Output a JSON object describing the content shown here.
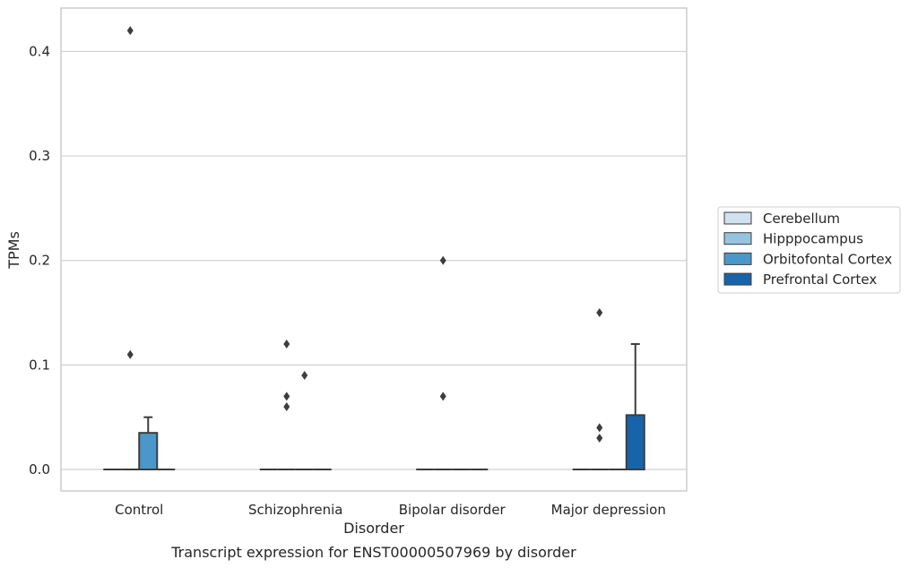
{
  "chart_data": {
    "type": "box",
    "xlabel": "Disorder",
    "ylabel": "TPMs",
    "caption": "Transcript expression for ENST00000507969 by disorder",
    "categories": [
      "Control",
      "Schizophrenia",
      "Bipolar disorder",
      "Major depression"
    ],
    "ylim": [
      -0.02,
      0.44
    ],
    "yticks": [
      0.0,
      0.1,
      0.2,
      0.3,
      0.4
    ],
    "ytick_labels": [
      "0.0",
      "0.1",
      "0.2",
      "0.3",
      "0.4"
    ],
    "grid": "horizontal",
    "legend_position": "right",
    "series": [
      {
        "name": "Cerebellum",
        "color": "#d0e1f2",
        "boxes": [
          {
            "category": "Control",
            "q1": 0,
            "median": 0,
            "q3": 0,
            "whisker_low": 0,
            "whisker_high": 0,
            "outliers": []
          },
          {
            "category": "Schizophrenia",
            "q1": 0,
            "median": 0,
            "q3": 0,
            "whisker_low": 0,
            "whisker_high": 0,
            "outliers": []
          },
          {
            "category": "Bipolar disorder",
            "q1": 0,
            "median": 0,
            "q3": 0,
            "whisker_low": 0,
            "whisker_high": 0,
            "outliers": []
          },
          {
            "category": "Major depression",
            "q1": 0,
            "median": 0,
            "q3": 0,
            "whisker_low": 0,
            "whisker_high": 0,
            "outliers": []
          }
        ]
      },
      {
        "name": "Hipppocampus",
        "color": "#94c4df",
        "boxes": [
          {
            "category": "Control",
            "q1": 0,
            "median": 0,
            "q3": 0,
            "whisker_low": 0,
            "whisker_high": 0,
            "outliers": [
              0.42,
              0.11
            ]
          },
          {
            "category": "Schizophrenia",
            "q1": 0,
            "median": 0,
            "q3": 0,
            "whisker_low": 0,
            "whisker_high": 0,
            "outliers": [
              0.12,
              0.07,
              0.06
            ]
          },
          {
            "category": "Bipolar disorder",
            "q1": 0,
            "median": 0,
            "q3": 0,
            "whisker_low": 0,
            "whisker_high": 0,
            "outliers": [
              0.2,
              0.07
            ]
          },
          {
            "category": "Major depression",
            "q1": 0,
            "median": 0,
            "q3": 0,
            "whisker_low": 0,
            "whisker_high": 0,
            "outliers": [
              0.15,
              0.04,
              0.03
            ]
          }
        ]
      },
      {
        "name": "Orbitofontal Cortex",
        "color": "#4a98c9",
        "boxes": [
          {
            "category": "Control",
            "q1": 0,
            "median": 0,
            "q3": 0.035,
            "whisker_low": 0,
            "whisker_high": 0.05,
            "outliers": []
          },
          {
            "category": "Schizophrenia",
            "q1": 0,
            "median": 0,
            "q3": 0,
            "whisker_low": 0,
            "whisker_high": 0,
            "outliers": [
              0.09
            ]
          },
          {
            "category": "Bipolar disorder",
            "q1": 0,
            "median": 0,
            "q3": 0,
            "whisker_low": 0,
            "whisker_high": 0,
            "outliers": []
          },
          {
            "category": "Major depression",
            "q1": 0,
            "median": 0,
            "q3": 0,
            "whisker_low": 0,
            "whisker_high": 0,
            "outliers": []
          }
        ]
      },
      {
        "name": "Prefrontal Cortex",
        "color": "#1764ab",
        "boxes": [
          {
            "category": "Control",
            "q1": 0,
            "median": 0,
            "q3": 0,
            "whisker_low": 0,
            "whisker_high": 0,
            "outliers": []
          },
          {
            "category": "Schizophrenia",
            "q1": 0,
            "median": 0,
            "q3": 0,
            "whisker_low": 0,
            "whisker_high": 0,
            "outliers": []
          },
          {
            "category": "Bipolar disorder",
            "q1": 0,
            "median": 0,
            "q3": 0,
            "whisker_low": 0,
            "whisker_high": 0,
            "outliers": []
          },
          {
            "category": "Major depression",
            "q1": 0,
            "median": 0,
            "q3": 0.052,
            "whisker_low": 0,
            "whisker_high": 0.12,
            "outliers": []
          }
        ]
      }
    ]
  }
}
